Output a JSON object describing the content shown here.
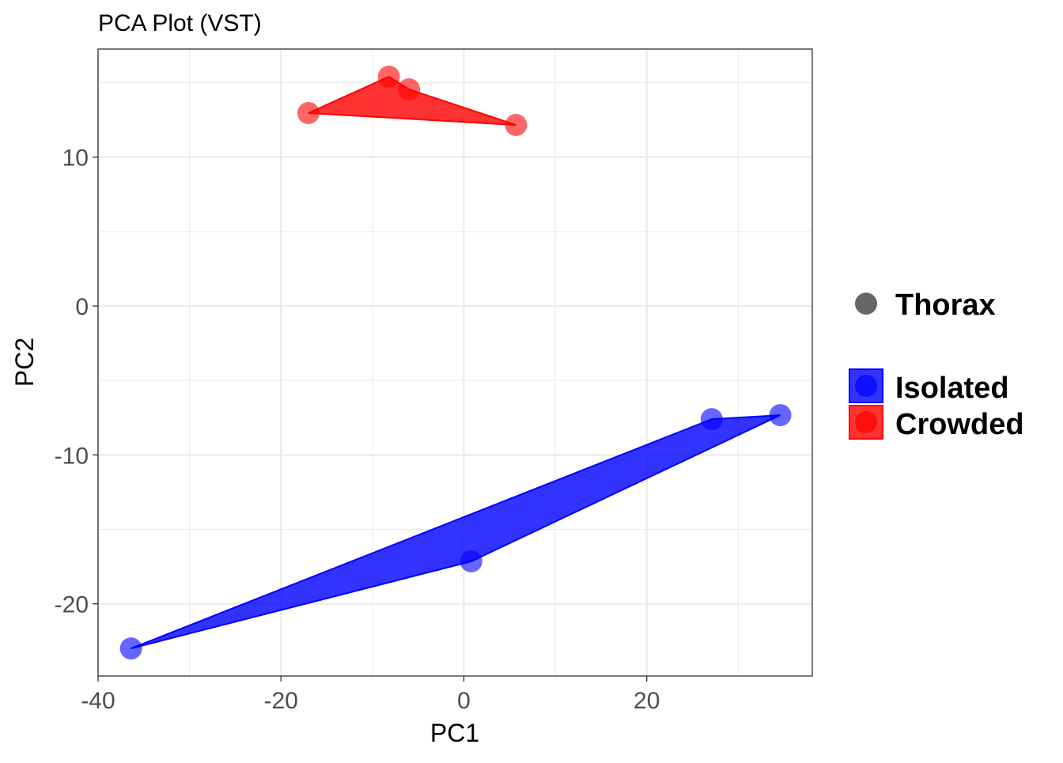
{
  "chart_data": {
    "type": "scatter",
    "title": "PCA Plot (VST)",
    "xlabel": "PC1",
    "ylabel": "PC2",
    "xlim": [
      -40,
      38.1
    ],
    "ylim": [
      -24.85,
      17.26
    ],
    "xticks": [
      -40,
      -20,
      0,
      20
    ],
    "yticks": [
      -20,
      -10,
      0,
      10
    ],
    "xtick_labels": [
      "-40",
      "-20",
      "0",
      "20"
    ],
    "ytick_labels": [
      "-20",
      "-10",
      "0",
      "10"
    ],
    "grid": true,
    "legend_position": "right",
    "shape_legend": {
      "label": "Thorax",
      "color": "#666666"
    },
    "series": [
      {
        "name": "Isolated",
        "color": "#0000ff",
        "points": [
          [
            -36.4,
            -23.0
          ],
          [
            27.1,
            -7.6
          ],
          [
            34.6,
            -7.33
          ],
          [
            0.8,
            -17.15
          ]
        ]
      },
      {
        "name": "Crowded",
        "color": "#ff0000",
        "points": [
          [
            -17.0,
            12.96
          ],
          [
            -8.2,
            15.4
          ],
          [
            -6.0,
            14.55
          ],
          [
            5.7,
            12.16
          ]
        ]
      }
    ]
  }
}
